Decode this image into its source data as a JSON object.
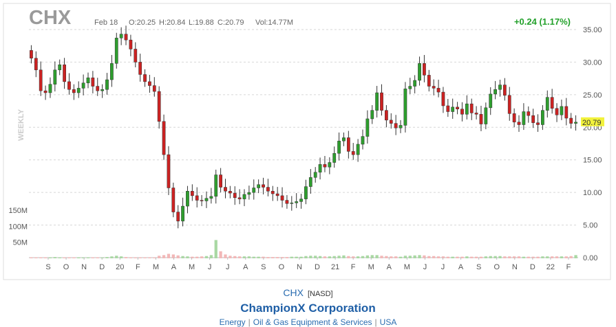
{
  "header": {
    "symbol": "CHX",
    "date": "Feb 18",
    "open": "O:20.25",
    "high": "H:20.84",
    "low": "L:19.88",
    "close": "C:20.79",
    "volume": "Vol:14.77M",
    "change": "+0.24 (1.17%)"
  },
  "period_label": "WEEKLY",
  "last_price_label": "20.79",
  "footer": {
    "symbol": "CHX",
    "exchange": "[NASD]",
    "company": "ChampionX Corporation",
    "sector": "Energy",
    "industry": "Oil & Gas Equipment & Services",
    "country": "USA"
  },
  "colors": {
    "up": "#2e9e2e",
    "down": "#cc2222",
    "vol_up": "#a9d8a3",
    "vol_down": "#f2b8b8",
    "last_price_bg": "#f2f23c",
    "change": "#22a02a"
  },
  "chart_data": {
    "type": "candlestick",
    "y_ticks": [
      "35.00",
      "30.00",
      "25.00",
      "20.00",
      "15.00",
      "10.00",
      "5.00",
      "0.00"
    ],
    "y_range": [
      0,
      35
    ],
    "x_ticks": [
      "S",
      "O",
      "N",
      "D",
      "20",
      "F",
      "M",
      "A",
      "M",
      "J",
      "J",
      "A",
      "S",
      "O",
      "N",
      "D",
      "21",
      "F",
      "M",
      "A",
      "M",
      "J",
      "J",
      "A",
      "S",
      "O",
      "N",
      "D",
      "22",
      "F"
    ],
    "volume_ticks": [
      "150M",
      "100M",
      "50M"
    ],
    "volume_range": [
      0,
      150
    ],
    "close": [
      30.6,
      28.8,
      25.6,
      25.3,
      26.6,
      28.8,
      29.6,
      27.0,
      25.8,
      25.3,
      26.0,
      26.8,
      27.6,
      26.3,
      25.6,
      25.8,
      27.3,
      29.8,
      33.7,
      34.3,
      33.4,
      32.0,
      30.0,
      28.1,
      27.0,
      26.4,
      25.5,
      20.9,
      15.8,
      10.7,
      7.0,
      5.6,
      7.9,
      10.2,
      9.5,
      8.8,
      8.7,
      9.1,
      9.4,
      12.7,
      10.8,
      10.2,
      9.9,
      9.2,
      9.0,
      9.7,
      10.0,
      10.7,
      11.2,
      10.8,
      10.2,
      9.8,
      9.5,
      8.8,
      8.3,
      8.4,
      8.6,
      9.0,
      10.9,
      12.3,
      13.1,
      14.3,
      13.9,
      14.6,
      16.0,
      17.9,
      18.4,
      16.3,
      15.8,
      17.4,
      18.6,
      21.3,
      22.6,
      25.3,
      22.6,
      21.1,
      20.6,
      19.9,
      20.3,
      25.9,
      26.3,
      27.2,
      29.8,
      28.0,
      26.3,
      26.0,
      25.4,
      23.3,
      22.4,
      23.1,
      22.8,
      22.0,
      23.6,
      22.2,
      22.0,
      20.5,
      23.0,
      25.1,
      25.8,
      26.5,
      24.9,
      22.1,
      20.8,
      20.4,
      22.4,
      21.8,
      20.7,
      20.4,
      22.6,
      24.6,
      22.9,
      21.9,
      23.2,
      21.4,
      20.6,
      20.79
    ],
    "volume": [
      3,
      3,
      3,
      3,
      3,
      4,
      3,
      3,
      3,
      3,
      3,
      3,
      3,
      3,
      3,
      3,
      4,
      6,
      8,
      6,
      4,
      3,
      3,
      3,
      3,
      3,
      3,
      8,
      10,
      14,
      12,
      9,
      7,
      6,
      5,
      5,
      6,
      7,
      10,
      57,
      22,
      12,
      8,
      7,
      6,
      6,
      6,
      5,
      5,
      5,
      4,
      4,
      4,
      4,
      4,
      5,
      5,
      5,
      7,
      8,
      8,
      7,
      6,
      6,
      7,
      8,
      9,
      7,
      6,
      6,
      7,
      9,
      10,
      10,
      8,
      7,
      6,
      6,
      5,
      8,
      8,
      9,
      10,
      9,
      7,
      7,
      6,
      6,
      5,
      5,
      5,
      5,
      6,
      5,
      5,
      5,
      6,
      7,
      7,
      7,
      6,
      6,
      6,
      6,
      5,
      5,
      5,
      5,
      6,
      6,
      6,
      6,
      6,
      6,
      7,
      10
    ]
  }
}
